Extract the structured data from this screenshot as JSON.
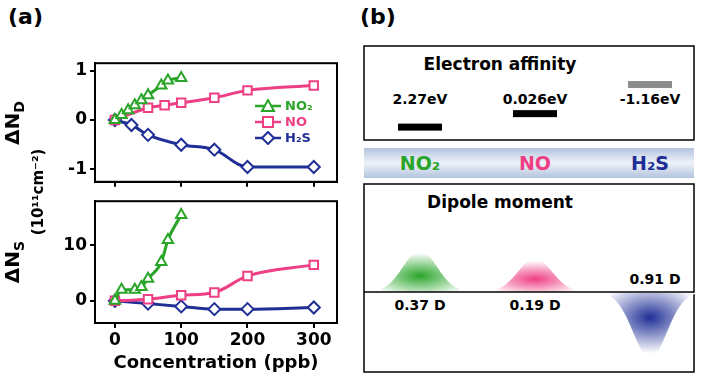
{
  "panel_labels": [
    "(a)",
    "(b)"
  ],
  "shared_ylabel": "(10¹¹cm⁻²)",
  "chart_data": [
    {
      "type": "line",
      "ylabel": {
        "text": "ΔN",
        "subscript": "D"
      },
      "xlim": [
        -30,
        335
      ],
      "xticks": [
        0,
        100,
        200,
        300
      ],
      "ylim": [
        -1.25,
        1.15
      ],
      "yticks": [
        -1,
        0,
        1
      ],
      "grid": false,
      "legend": "right",
      "tick_labels": "y",
      "series": [
        {
          "name": "NO₂",
          "color": "#2aa52a",
          "marker": "triangle",
          "x": [
            0,
            10,
            20,
            30,
            40,
            50,
            70,
            80,
            100
          ],
          "values": [
            0,
            0.1,
            0.2,
            0.3,
            0.4,
            0.5,
            0.7,
            0.8,
            0.85
          ]
        },
        {
          "name": "NO",
          "color": "#ee3f84",
          "marker": "square",
          "x": [
            0,
            50,
            75,
            100,
            150,
            200,
            300
          ],
          "values": [
            0,
            0.25,
            0.3,
            0.35,
            0.45,
            0.6,
            0.7
          ]
        },
        {
          "name": "H₂S",
          "color": "#1f2f96",
          "marker": "diamond",
          "x": [
            0,
            25,
            50,
            100,
            150,
            200,
            300
          ],
          "values": [
            0,
            -0.1,
            -0.3,
            -0.5,
            -0.6,
            -0.95,
            -0.95
          ]
        }
      ]
    },
    {
      "type": "line",
      "ylabel": {
        "text": "ΔN",
        "subscript": "S"
      },
      "xlabel": "Concentration (ppb)",
      "xlim": [
        -30,
        335
      ],
      "xticks": [
        0,
        100,
        200,
        300
      ],
      "ylim": [
        -4,
        18
      ],
      "yticks": [
        0,
        10
      ],
      "grid": false,
      "series": [
        {
          "name": "NO₂",
          "color": "#2aa52a",
          "marker": "triangle",
          "x": [
            0,
            10,
            30,
            40,
            50,
            70,
            80,
            100
          ],
          "values": [
            0,
            2,
            2,
            2.5,
            4,
            7,
            11,
            15.5
          ]
        },
        {
          "name": "NO",
          "color": "#ee3f84",
          "marker": "square",
          "x": [
            0,
            50,
            100,
            150,
            200,
            300
          ],
          "values": [
            0,
            0.3,
            1,
            1.5,
            4.5,
            6.5
          ]
        },
        {
          "name": "H₂S",
          "color": "#1f2f96",
          "marker": "diamond",
          "x": [
            0,
            50,
            100,
            150,
            200,
            300
          ],
          "values": [
            0,
            -0.5,
            -1,
            -1.5,
            -1.5,
            -1.2
          ]
        }
      ]
    }
  ],
  "diagram": {
    "electron_affinity": {
      "title": "Electron affinity",
      "items": [
        {
          "value": 2.27,
          "label": "2.27eV",
          "color": "#000000"
        },
        {
          "value": 0.026,
          "label": "0.026eV",
          "color": "#000000"
        },
        {
          "value": -1.16,
          "label": "-1.16eV",
          "color": "#8c8c8c"
        }
      ]
    },
    "molecules": [
      {
        "name": "NO₂",
        "color": "#2aa52a"
      },
      {
        "name": "NO",
        "color": "#ee3f84"
      },
      {
        "name": "H₂S",
        "color": "#1f2f96"
      }
    ],
    "dipole_moment": {
      "title": "Dipole moment",
      "items": [
        {
          "value": 0.37,
          "label": "0.37 D",
          "direction": "up"
        },
        {
          "value": 0.19,
          "label": "0.19 D",
          "direction": "up"
        },
        {
          "value": 0.91,
          "label": "0.91 D",
          "direction": "down"
        }
      ]
    }
  }
}
